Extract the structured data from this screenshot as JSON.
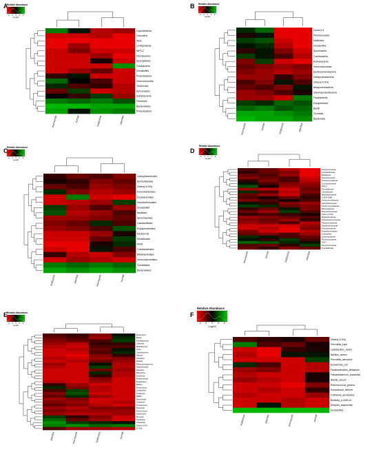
{
  "figure": {
    "legend_title": "Relative Abundance",
    "legend_ticks": [
      "-2",
      "0",
      "2",
      "4",
      "6"
    ],
    "colors": {
      "low": "#ff0000",
      "mid": "#000000",
      "high": "#00cc00"
    }
  },
  "chart_data": [
    {
      "type": "heatmap",
      "panel": "A",
      "scale_label": "Log10",
      "columns": [
        "microcystis",
        "normal",
        "Antibiotics",
        "diarrhea"
      ],
      "rows": [
        "Cyanobacteria",
        "Chloroflexi",
        "WS3",
        "Lentisphaerae",
        "WPS-2",
        "Fibrobacteres",
        "Synergistetes",
        "Fusobacteria",
        "Unclassified",
        "Proteobacteria",
        "Verrucomicrobia",
        "Tenericutes",
        "Spirochaetes",
        "Actinobacteria",
        "Firmicutes",
        "Bacteroidetes",
        "Proteobacteria"
      ],
      "values": [
        [
          0.6,
          0.1,
          -0.7,
          -0.6
        ],
        [
          -0.8,
          -0.8,
          -0.7,
          -0.9
        ],
        [
          -0.9,
          -0.9,
          -0.9,
          -0.9
        ],
        [
          -0.9,
          -0.6,
          -0.9,
          -0.9
        ],
        [
          -0.8,
          -0.5,
          -0.8,
          -0.8
        ],
        [
          -0.8,
          -0.8,
          -0.6,
          -0.9
        ],
        [
          -0.8,
          -0.8,
          -0.1,
          -0.8
        ],
        [
          -0.8,
          -0.8,
          -0.8,
          0.7
        ],
        [
          -0.8,
          -0.6,
          -0.4,
          -0.8
        ],
        [
          -0.2,
          0.1,
          -0.8,
          -0.8
        ],
        [
          0.5,
          0.0,
          -0.3,
          -0.8
        ],
        [
          0.2,
          -0.3,
          -0.2,
          -0.7
        ],
        [
          -0.4,
          0.3,
          -0.8,
          -0.7
        ],
        [
          0.0,
          -0.2,
          0.3,
          -0.6
        ],
        [
          0.6,
          0.5,
          0.6,
          0.4
        ],
        [
          0.9,
          0.9,
          0.8,
          0.8
        ],
        [
          0.8,
          0.1,
          0.7,
          0.6
        ]
      ]
    },
    {
      "type": "heatmap",
      "panel": "B",
      "scale_label": "Log10",
      "columns": [
        "microcystis",
        "normal",
        "Antibiotics",
        "diarrhea"
      ],
      "rows": [
        "Vomix-0.5",
        "Planctomycetia",
        "Mollicutes",
        "Unclassified",
        "Spirochaetia",
        "Coriobacteriia",
        "Actinobacteria",
        "Verrucomicrobiae",
        "Epsilonproteobacteria",
        "Deltaproteobacteria",
        "Others(<0.5%)",
        "Betaproteobacteria",
        "Gammaproteobacteria",
        "Fusobacteriia",
        "Erysipelotrichi",
        "Bacilli",
        "Clostridia",
        "Bacteroidia"
      ],
      "values": [
        [
          0.2,
          0.5,
          -0.9,
          -0.9
        ],
        [
          -0.1,
          0.1,
          -0.9,
          -0.9
        ],
        [
          0.3,
          0.4,
          -0.8,
          -0.9
        ],
        [
          0.1,
          0.2,
          -0.7,
          -0.9
        ],
        [
          -0.2,
          0.1,
          -0.5,
          -0.8
        ],
        [
          0.3,
          0.1,
          -0.3,
          -0.7
        ],
        [
          -0.5,
          0.3,
          -0.8,
          -0.9
        ],
        [
          -0.4,
          -0.5,
          -0.6,
          -0.5
        ],
        [
          -0.5,
          -0.6,
          -0.7,
          -0.6
        ],
        [
          -0.6,
          -0.6,
          -0.2,
          -0.5
        ],
        [
          -0.3,
          -0.5,
          0.1,
          -0.3
        ],
        [
          -0.4,
          -0.3,
          -0.5,
          0.1
        ],
        [
          -0.6,
          -0.5,
          -0.3,
          -0.1
        ],
        [
          -0.6,
          -0.6,
          -0.8,
          0.6
        ],
        [
          0.3,
          0.2,
          0.5,
          0.4
        ],
        [
          0.5,
          0.6,
          0.4,
          0.5
        ],
        [
          0.8,
          0.8,
          0.7,
          0.6
        ],
        [
          0.9,
          0.8,
          0.8,
          0.7
        ]
      ]
    },
    {
      "type": "heatmap",
      "panel": "C",
      "scale_label": "Log10",
      "columns": [
        "Antibiotics",
        "diarrhea",
        "microcystis",
        "normal"
      ],
      "rows": [
        "Campylobacterales",
        "Burkholderiales",
        "Others(<0.5%)",
        "Enterobacteriales",
        "Fusobacteriales",
        "Desulfovibrionales",
        "Unclassified",
        "Bacillales",
        "Spirochaetales",
        "Lactobacillales",
        "Erysipelotrichales",
        "ML615J-28",
        "Rickettsiales",
        "RF39",
        "Coriobacteriales",
        "Bifidobacteriales",
        "Verrucomicrobiales",
        "Clostridiales",
        "Bacteroidales"
      ],
      "values": [
        [
          -0.2,
          -0.4,
          -0.3,
          -0.5
        ],
        [
          -0.1,
          -0.2,
          -0.5,
          -0.4
        ],
        [
          -0.4,
          -0.3,
          -0.6,
          -0.5
        ],
        [
          0.2,
          -0.5,
          -0.7,
          -0.6
        ],
        [
          -0.8,
          0.6,
          -0.8,
          -0.9
        ],
        [
          -0.8,
          -0.7,
          -0.6,
          0.3
        ],
        [
          0.3,
          -0.6,
          -0.3,
          -0.6
        ],
        [
          0.4,
          -0.7,
          -0.6,
          -0.3
        ],
        [
          -0.6,
          -0.6,
          -0.5,
          -0.4
        ],
        [
          -0.5,
          -0.4,
          0.2,
          -0.3
        ],
        [
          -0.6,
          -0.5,
          -0.3,
          0.4
        ],
        [
          -0.8,
          -0.8,
          -0.6,
          -0.1
        ],
        [
          -0.8,
          -0.8,
          -0.4,
          0.3
        ],
        [
          -0.9,
          -0.9,
          -0.1,
          0.2
        ],
        [
          -0.8,
          -0.9,
          0.1,
          -0.3
        ],
        [
          -0.2,
          -0.7,
          -0.8,
          -0.5
        ],
        [
          -0.8,
          -0.6,
          -0.7,
          -0.8
        ],
        [
          0.6,
          0.5,
          0.6,
          0.5
        ],
        [
          0.8,
          0.7,
          0.8,
          0.7
        ]
      ]
    },
    {
      "type": "heatmap",
      "panel": "D",
      "scale_label": "Log10",
      "columns": [
        "microcystis",
        "normal",
        "Antibiotics",
        "diarrhea"
      ],
      "rows": [
        "Streptococcaceae",
        "Lactobacillaceae",
        "Bacillaceae",
        "Spirochaetaceae",
        "Christensenellaceae",
        "Coriobacteriaceae",
        "RFP12",
        "Prevotellaceae",
        "Clostridiaceae",
        "Bifidobacteriaceae",
        "p-2534-18B5",
        "Verrucomicrobiaceae",
        "Helicobacteraceae",
        "Porphyromonadaceae",
        "Bacteroidaceae",
        "Enterobacteriaceae",
        "Others(<0.5%)",
        "Mogibacteriaceae",
        "Peptostreptococcaceae",
        "Paraprevotellaceae",
        "Desulfovibrionaceae",
        "Fusobacteriaceae",
        "Erysipelotrichaceae",
        "Unclassified",
        "Lachnospiraceae",
        "Ruminococcaceae",
        "S24-7",
        "Ruminococcaceae",
        "Prevotellaceae"
      ],
      "values": [
        [
          -0.3,
          -0.4,
          -0.7,
          -0.9
        ],
        [
          -0.2,
          -0.4,
          -0.5,
          -0.9
        ],
        [
          -0.4,
          -0.3,
          -0.6,
          -0.9
        ],
        [
          -0.5,
          -0.4,
          -0.3,
          -0.8
        ],
        [
          -0.2,
          -0.5,
          -0.3,
          -0.7
        ],
        [
          0.1,
          -0.3,
          -0.5,
          -0.6
        ],
        [
          0.4,
          -0.1,
          -0.6,
          -0.5
        ],
        [
          -0.6,
          -0.7,
          -0.8,
          -0.4
        ],
        [
          0.2,
          -0.3,
          -0.7,
          -0.5
        ],
        [
          -0.4,
          -0.6,
          -0.8,
          -0.3
        ],
        [
          -0.3,
          -0.1,
          -0.4,
          -0.2
        ],
        [
          -0.5,
          -0.3,
          -0.1,
          -0.3
        ],
        [
          0.1,
          -0.2,
          -0.5,
          -0.6
        ],
        [
          0.3,
          0.2,
          -0.4,
          -0.5
        ],
        [
          -0.2,
          -0.4,
          0.1,
          -0.5
        ],
        [
          -0.4,
          -0.6,
          0.3,
          -0.3
        ],
        [
          -0.2,
          -0.3,
          -0.2,
          -0.1
        ],
        [
          -0.6,
          -0.5,
          -0.4,
          -0.3
        ],
        [
          -0.5,
          -0.4,
          -0.6,
          -0.2
        ],
        [
          -0.6,
          -0.5,
          -0.3,
          -0.7
        ],
        [
          -0.8,
          -0.8,
          -0.8,
          -0.6
        ],
        [
          -0.8,
          -0.7,
          -0.9,
          -0.5
        ],
        [
          -0.5,
          -0.8,
          -0.9,
          -0.7
        ],
        [
          -0.4,
          -0.5,
          -0.3,
          -0.6
        ],
        [
          0.2,
          0.1,
          -0.3,
          -0.4
        ],
        [
          0.1,
          -0.2,
          0.3,
          -0.3
        ],
        [
          0.5,
          0.4,
          0.2,
          0.1
        ],
        [
          -0.3,
          -0.4,
          -0.2,
          0.3
        ],
        [
          -0.4,
          -0.2,
          -0.5,
          -0.4
        ]
      ]
    },
    {
      "type": "heatmap",
      "panel": "E",
      "scale_label": "Log10",
      "columns": [
        "diarrhea",
        "microcystis",
        "Antibiotics",
        "normal"
      ],
      "rows": [
        "Eubacterium",
        "Blautia",
        "Faecalibacterium",
        "Collinsella",
        "Bifidobacterium",
        "Dorea",
        "Catenibacterium",
        "Sharpea",
        "Clostridium",
        "Bulleidia",
        "Phascolarctobacterium",
        "Parabacteroides",
        "Roseburia",
        "Bacteroides",
        "Escherichia",
        "Porphyromonas",
        "Megasphaera",
        "Bacillus",
        "Streptococcus",
        "Lactobacillus",
        "Oscillospira",
        "SMB53",
        "Akkermansia",
        "Odoribacter",
        "Fusobacterium",
        "Butyrivibrio",
        "Ruminococcus",
        "Desulfovibrio",
        "Prevotella",
        "Oscillibacter",
        "Unclassified",
        "Others(<0.5%)",
        "p-75-a5"
      ],
      "values": [
        [
          -0.3,
          -0.2,
          -0.5,
          0.1
        ],
        [
          -0.4,
          -0.3,
          -0.6,
          0.2
        ],
        [
          -0.5,
          -0.4,
          -0.3,
          0.3
        ],
        [
          -0.6,
          -0.7,
          -0.2,
          -0.2
        ],
        [
          -0.7,
          -0.8,
          -0.3,
          -0.3
        ],
        [
          -0.8,
          -0.7,
          -0.4,
          0.1
        ],
        [
          -0.8,
          -0.8,
          -0.3,
          0.2
        ],
        [
          -0.8,
          -0.9,
          -0.5,
          -0.2
        ],
        [
          -0.7,
          -0.8,
          -0.6,
          -0.5
        ],
        [
          -0.8,
          -0.7,
          -0.4,
          -0.6
        ],
        [
          -0.6,
          -0.8,
          0.1,
          -0.7
        ],
        [
          -0.7,
          -0.8,
          0.3,
          -0.7
        ],
        [
          -0.8,
          -0.8,
          -0.4,
          -0.6
        ],
        [
          -0.8,
          -0.8,
          0.2,
          -0.7
        ],
        [
          -0.8,
          -0.8,
          -0.2,
          -0.7
        ],
        [
          -0.8,
          -0.8,
          -0.5,
          -0.8
        ],
        [
          -0.7,
          -0.8,
          -0.6,
          -0.8
        ],
        [
          -0.2,
          -0.6,
          -0.8,
          -0.8
        ],
        [
          0.2,
          -0.5,
          -0.7,
          -0.8
        ],
        [
          -0.3,
          0.3,
          -0.7,
          -0.8
        ],
        [
          -0.5,
          0.4,
          -0.8,
          -0.8
        ],
        [
          -0.4,
          0.2,
          -0.6,
          -0.8
        ],
        [
          -0.6,
          -0.5,
          -0.8,
          -0.8
        ],
        [
          -0.5,
          -0.6,
          -0.8,
          -0.7
        ],
        [
          -0.4,
          -0.5,
          -0.7,
          -0.8
        ],
        [
          -0.6,
          -0.7,
          -0.5,
          -0.5
        ],
        [
          -0.5,
          -0.6,
          -0.6,
          -0.6
        ],
        [
          -0.6,
          -0.7,
          -0.7,
          -0.6
        ],
        [
          0.3,
          -0.2,
          -0.5,
          -0.8
        ],
        [
          0.5,
          -0.4,
          -0.6,
          -0.8
        ],
        [
          0.7,
          0.3,
          0.2,
          0.1
        ],
        [
          0.6,
          0.7,
          0.5,
          0.6
        ],
        [
          -0.3,
          -0.6,
          -0.6,
          -0.7
        ]
      ]
    },
    {
      "type": "heatmap",
      "panel": "F",
      "scale_label": "Log10",
      "columns": [
        "Antibiotics",
        "diarrhea",
        "microcystis",
        "normal"
      ],
      "rows": [
        "Others(<0.5%)",
        "Prevotella_copri",
        "Lactobacillus_reuteri",
        "Bacillus_cereus",
        "Prevotella_stercorea",
        "Escherichia_coli",
        "Parabacteroides_distasonis",
        "Faecalibacterium_prausnitzii",
        "Blautia_obeum",
        "Ruminococcus_gnavus",
        "Eubacterium_biforme",
        "Collinsella_aerofaciens",
        "Bulleidia_p-1630-c5",
        "Sharpea_azabuensis",
        "Unclassified"
      ],
      "values": [
        [
          -0.3,
          -0.2,
          -0.1,
          -0.4
        ],
        [
          0.6,
          -0.3,
          -0.4,
          -0.1
        ],
        [
          -0.8,
          -0.9,
          -0.2,
          -0.1
        ],
        [
          -0.7,
          -0.9,
          0.1,
          0.1
        ],
        [
          -0.8,
          -0.8,
          -0.8,
          0.3
        ],
        [
          0.2,
          -0.3,
          -0.8,
          -0.7
        ],
        [
          -0.6,
          -0.5,
          -0.8,
          -0.7
        ],
        [
          -0.7,
          -0.8,
          -0.8,
          -0.1
        ],
        [
          -0.6,
          -0.7,
          -0.8,
          -0.1
        ],
        [
          -0.8,
          -0.8,
          -0.9,
          -0.5
        ],
        [
          -0.8,
          -0.7,
          -0.8,
          -0.2
        ],
        [
          -0.7,
          -0.8,
          -0.8,
          -0.6
        ],
        [
          -0.8,
          -0.8,
          -0.7,
          -0.8
        ],
        [
          -0.8,
          0.1,
          -0.7,
          -0.8
        ],
        [
          0.9,
          0.9,
          0.9,
          0.9
        ]
      ]
    }
  ]
}
